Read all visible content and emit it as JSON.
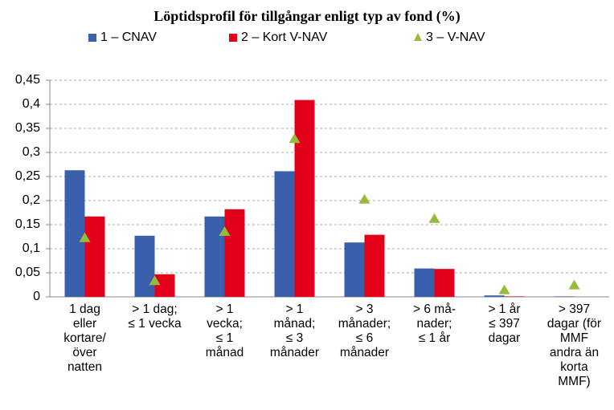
{
  "chart_data": {
    "type": "bar",
    "title": "Löptidsprofil för tillgångar enligt typ av fond (%)",
    "categories": [
      "1 dag\neller\nkortare/\növer\nnatten",
      "> 1 dag;\n≤ 1 vecka",
      "> 1\nvecka;\n≤ 1\nmånad",
      "> 1\nmånad;\n≤ 3\nmånader",
      "> 3\nmånader;\n≤ 6\nmånader",
      "> 6 må-\nnader;\n≤ 1 år",
      ">  1 år\n≤ 397\ndagar",
      "> 397\ndagar (för\nMMF\nandra än\nkorta\nMMF)"
    ],
    "series": [
      {
        "name": "1 – CNAV",
        "color": "#3a5fad",
        "marker": "bar",
        "values": [
          0.263,
          0.127,
          0.167,
          0.261,
          0.113,
          0.059,
          0.003,
          0.001
        ]
      },
      {
        "name": "2 – Kort V-NAV",
        "color": "#e3001b",
        "marker": "bar",
        "values": [
          0.167,
          0.047,
          0.182,
          0.409,
          0.129,
          0.058,
          0.001,
          0.0
        ]
      },
      {
        "name": "3 – V-NAV",
        "color": "#9aba3c",
        "marker": "triangle",
        "values": [
          0.122,
          0.033,
          0.135,
          0.328,
          0.202,
          0.162,
          0.014,
          0.024
        ]
      }
    ],
    "ylim": [
      0,
      0.45
    ],
    "yticks": [
      0,
      {
        "value": 0.05,
        "label": "0,05"
      },
      {
        "value": 0.1,
        "label": "0,1"
      },
      {
        "value": 0.15,
        "label": "0,15"
      },
      {
        "value": 0.2,
        "label": "0,2"
      },
      {
        "value": 0.25,
        "label": "0,25"
      },
      {
        "value": 0.3,
        "label": "0,3"
      },
      {
        "value": 0.35,
        "label": "0,35"
      },
      {
        "value": 0.4,
        "label": "0,4"
      },
      {
        "value": 0.45,
        "label": "0,45"
      }
    ],
    "grid": true,
    "legend": "top"
  }
}
